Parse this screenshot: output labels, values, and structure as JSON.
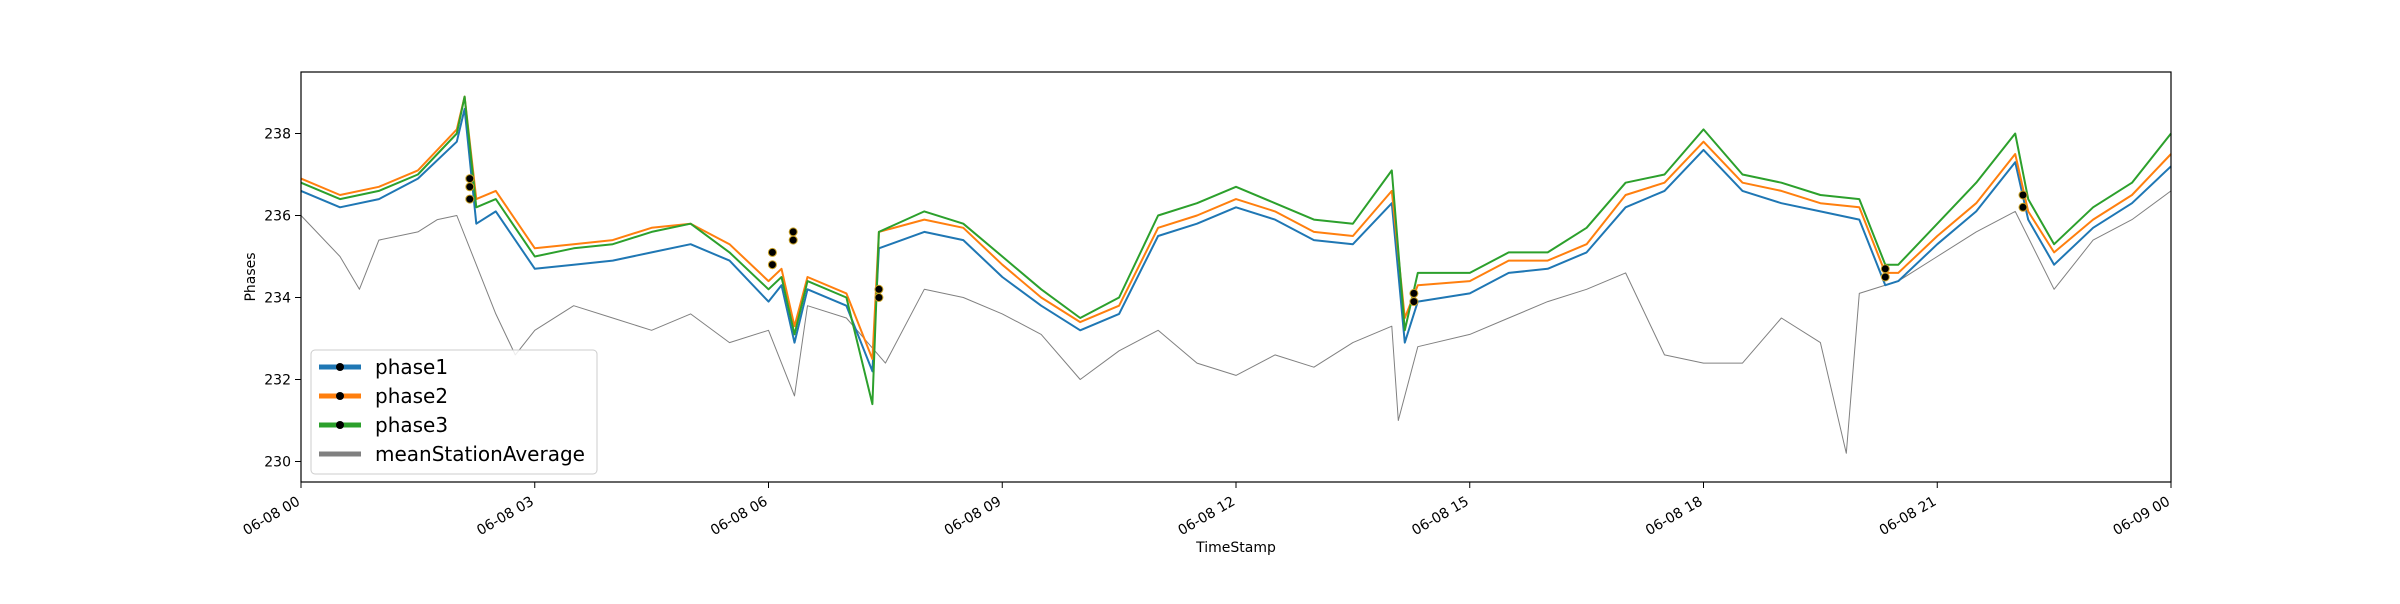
{
  "chart_data": {
    "type": "line",
    "title": "",
    "xlabel": "TimeStamp",
    "ylabel": "Phases",
    "x_range": [
      "06-08 00:00",
      "06-09 00:00"
    ],
    "ylim": [
      229.5,
      239.5
    ],
    "grid": false,
    "legend_position": "lower-left",
    "x_ticks": [
      "06-08 00",
      "06-08 03",
      "06-08 06",
      "06-08 09",
      "06-08 12",
      "06-08 15",
      "06-08 18",
      "06-08 21",
      "06-09 00"
    ],
    "y_ticks": [
      230,
      232,
      234,
      236,
      238
    ],
    "colors": {
      "phase1": "#1f77b4",
      "phase2": "#ff7f0e",
      "phase3": "#2ca02c",
      "meanStationAverage": "#808080",
      "marker": "#000000"
    },
    "series": [
      {
        "name": "phase1",
        "x": [
          "06-08 00:00",
          "06-08 00:30",
          "06-08 01:00",
          "06-08 01:30",
          "06-08 02:00",
          "06-08 02:06",
          "06-08 02:15",
          "06-08 02:30",
          "06-08 03:00",
          "06-08 03:30",
          "06-08 04:00",
          "06-08 04:30",
          "06-08 05:00",
          "06-08 05:30",
          "06-08 06:00",
          "06-08 06:10",
          "06-08 06:20",
          "06-08 06:30",
          "06-08 07:00",
          "06-08 07:20",
          "06-08 07:25",
          "06-08 08:00",
          "06-08 08:30",
          "06-08 09:00",
          "06-08 09:30",
          "06-08 10:00",
          "06-08 10:30",
          "06-08 11:00",
          "06-08 11:30",
          "06-08 12:00",
          "06-08 12:30",
          "06-08 13:00",
          "06-08 13:30",
          "06-08 14:00",
          "06-08 14:10",
          "06-08 14:20",
          "06-08 15:00",
          "06-08 15:30",
          "06-08 16:00",
          "06-08 16:30",
          "06-08 17:00",
          "06-08 17:30",
          "06-08 18:00",
          "06-08 18:30",
          "06-08 19:00",
          "06-08 19:30",
          "06-08 20:00",
          "06-08 20:20",
          "06-08 20:30",
          "06-08 21:00",
          "06-08 21:30",
          "06-08 22:00",
          "06-08 22:10",
          "06-08 22:30",
          "06-08 23:00",
          "06-08 23:30",
          "06-09 00:00"
        ],
        "y": [
          236.6,
          236.2,
          236.4,
          236.9,
          237.8,
          238.6,
          235.8,
          236.1,
          234.7,
          234.8,
          234.9,
          235.1,
          235.3,
          234.9,
          233.9,
          234.3,
          232.9,
          234.2,
          233.8,
          232.2,
          235.2,
          235.6,
          235.4,
          234.5,
          233.8,
          233.2,
          233.6,
          235.5,
          235.8,
          236.2,
          235.9,
          235.4,
          235.3,
          236.3,
          232.9,
          233.9,
          234.1,
          234.6,
          234.7,
          235.1,
          236.2,
          236.6,
          237.6,
          236.6,
          236.3,
          236.1,
          235.9,
          234.3,
          234.4,
          235.3,
          236.1,
          237.3,
          235.9,
          234.8,
          235.7,
          236.3,
          237.2
        ]
      },
      {
        "name": "phase2",
        "x": [
          "06-08 00:00",
          "06-08 00:30",
          "06-08 01:00",
          "06-08 01:30",
          "06-08 02:00",
          "06-08 02:06",
          "06-08 02:15",
          "06-08 02:30",
          "06-08 03:00",
          "06-08 03:30",
          "06-08 04:00",
          "06-08 04:30",
          "06-08 05:00",
          "06-08 05:30",
          "06-08 06:00",
          "06-08 06:10",
          "06-08 06:20",
          "06-08 06:30",
          "06-08 07:00",
          "06-08 07:20",
          "06-08 07:25",
          "06-08 08:00",
          "06-08 08:30",
          "06-08 09:00",
          "06-08 09:30",
          "06-08 10:00",
          "06-08 10:30",
          "06-08 11:00",
          "06-08 11:30",
          "06-08 12:00",
          "06-08 12:30",
          "06-08 13:00",
          "06-08 13:30",
          "06-08 14:00",
          "06-08 14:10",
          "06-08 14:20",
          "06-08 15:00",
          "06-08 15:30",
          "06-08 16:00",
          "06-08 16:30",
          "06-08 17:00",
          "06-08 17:30",
          "06-08 18:00",
          "06-08 18:30",
          "06-08 19:00",
          "06-08 19:30",
          "06-08 20:00",
          "06-08 20:20",
          "06-08 20:30",
          "06-08 21:00",
          "06-08 21:30",
          "06-08 22:00",
          "06-08 22:10",
          "06-08 22:30",
          "06-08 23:00",
          "06-08 23:30",
          "06-09 00:00"
        ],
        "y": [
          236.9,
          236.5,
          236.7,
          237.1,
          238.1,
          238.9,
          236.4,
          236.6,
          235.2,
          235.3,
          235.4,
          235.7,
          235.8,
          235.3,
          234.4,
          234.7,
          233.3,
          234.5,
          234.1,
          232.5,
          235.6,
          235.9,
          235.7,
          234.8,
          234.0,
          233.4,
          233.8,
          235.7,
          236.0,
          236.4,
          236.1,
          235.6,
          235.5,
          236.6,
          233.5,
          234.3,
          234.4,
          234.9,
          234.9,
          235.3,
          236.5,
          236.8,
          237.8,
          236.8,
          236.6,
          236.3,
          236.2,
          234.6,
          234.6,
          235.5,
          236.3,
          237.5,
          236.1,
          235.1,
          235.9,
          236.5,
          237.5
        ]
      },
      {
        "name": "phase3",
        "x": [
          "06-08 00:00",
          "06-08 00:30",
          "06-08 01:00",
          "06-08 01:30",
          "06-08 02:00",
          "06-08 02:06",
          "06-08 02:15",
          "06-08 02:30",
          "06-08 03:00",
          "06-08 03:30",
          "06-08 04:00",
          "06-08 04:30",
          "06-08 05:00",
          "06-08 05:30",
          "06-08 06:00",
          "06-08 06:10",
          "06-08 06:20",
          "06-08 06:30",
          "06-08 07:00",
          "06-08 07:20",
          "06-08 07:25",
          "06-08 08:00",
          "06-08 08:30",
          "06-08 09:00",
          "06-08 09:30",
          "06-08 10:00",
          "06-08 10:30",
          "06-08 11:00",
          "06-08 11:30",
          "06-08 12:00",
          "06-08 12:30",
          "06-08 13:00",
          "06-08 13:30",
          "06-08 14:00",
          "06-08 14:10",
          "06-08 14:20",
          "06-08 15:00",
          "06-08 15:30",
          "06-08 16:00",
          "06-08 16:30",
          "06-08 17:00",
          "06-08 17:30",
          "06-08 18:00",
          "06-08 18:30",
          "06-08 19:00",
          "06-08 19:30",
          "06-08 20:00",
          "06-08 20:20",
          "06-08 20:30",
          "06-08 21:00",
          "06-08 21:30",
          "06-08 22:00",
          "06-08 22:10",
          "06-08 22:30",
          "06-08 23:00",
          "06-08 23:30",
          "06-09 00:00"
        ],
        "y": [
          236.8,
          236.4,
          236.6,
          237.0,
          238.0,
          238.9,
          236.2,
          236.4,
          235.0,
          235.2,
          235.3,
          235.6,
          235.8,
          235.1,
          234.2,
          234.5,
          233.1,
          234.4,
          234.0,
          231.4,
          235.6,
          236.1,
          235.8,
          235.0,
          234.2,
          233.5,
          234.0,
          236.0,
          236.3,
          236.7,
          236.3,
          235.9,
          235.8,
          237.1,
          233.2,
          234.6,
          234.6,
          235.1,
          235.1,
          235.7,
          236.8,
          237.0,
          238.1,
          237.0,
          236.8,
          236.5,
          236.4,
          234.8,
          234.8,
          235.8,
          236.8,
          238.0,
          236.4,
          235.3,
          236.2,
          236.8,
          238.0
        ]
      },
      {
        "name": "meanStationAverage",
        "x": [
          "06-08 00:00",
          "06-08 00:30",
          "06-08 00:45",
          "06-08 01:00",
          "06-08 01:30",
          "06-08 01:45",
          "06-08 02:00",
          "06-08 02:30",
          "06-08 02:45",
          "06-08 03:00",
          "06-08 03:30",
          "06-08 04:00",
          "06-08 04:30",
          "06-08 05:00",
          "06-08 05:30",
          "06-08 06:00",
          "06-08 06:20",
          "06-08 06:30",
          "06-08 07:00",
          "06-08 07:30",
          "06-08 08:00",
          "06-08 08:30",
          "06-08 09:00",
          "06-08 09:30",
          "06-08 10:00",
          "06-08 10:30",
          "06-08 11:00",
          "06-08 11:30",
          "06-08 12:00",
          "06-08 12:30",
          "06-08 13:00",
          "06-08 13:30",
          "06-08 14:00",
          "06-08 14:05",
          "06-08 14:20",
          "06-08 15:00",
          "06-08 15:30",
          "06-08 16:00",
          "06-08 16:30",
          "06-08 17:00",
          "06-08 17:30",
          "06-08 18:00",
          "06-08 18:30",
          "06-08 19:00",
          "06-08 19:30",
          "06-08 19:50",
          "06-08 20:00",
          "06-08 20:30",
          "06-08 21:00",
          "06-08 21:30",
          "06-08 22:00",
          "06-08 22:30",
          "06-08 23:00",
          "06-08 23:30",
          "06-09 00:00"
        ],
        "y": [
          236.0,
          235.0,
          234.2,
          235.4,
          235.6,
          235.9,
          236.0,
          233.6,
          232.6,
          233.2,
          233.8,
          233.5,
          233.2,
          233.6,
          232.9,
          233.2,
          231.6,
          233.8,
          233.5,
          232.4,
          234.2,
          234.0,
          233.6,
          233.1,
          232.0,
          232.7,
          233.2,
          232.4,
          232.1,
          232.6,
          232.3,
          232.9,
          233.3,
          231.0,
          232.8,
          233.1,
          233.5,
          233.9,
          234.2,
          234.6,
          232.6,
          232.4,
          232.4,
          233.5,
          232.9,
          230.2,
          234.1,
          234.4,
          235.0,
          235.6,
          236.1,
          234.2,
          235.4,
          235.9,
          236.6
        ]
      }
    ],
    "markers": {
      "name": "marker",
      "points": [
        {
          "x": "06-08 02:10",
          "y": 236.9
        },
        {
          "x": "06-08 02:10",
          "y": 236.7
        },
        {
          "x": "06-08 02:10",
          "y": 236.4
        },
        {
          "x": "06-08 06:03",
          "y": 235.1
        },
        {
          "x": "06-08 06:03",
          "y": 234.8
        },
        {
          "x": "06-08 06:19",
          "y": 235.6
        },
        {
          "x": "06-08 06:19",
          "y": 235.4
        },
        {
          "x": "06-08 07:25",
          "y": 234.2
        },
        {
          "x": "06-08 07:25",
          "y": 234.0
        },
        {
          "x": "06-08 14:17",
          "y": 234.1
        },
        {
          "x": "06-08 14:17",
          "y": 233.9
        },
        {
          "x": "06-08 20:20",
          "y": 234.7
        },
        {
          "x": "06-08 20:20",
          "y": 234.5
        },
        {
          "x": "06-08 22:06",
          "y": 236.5
        },
        {
          "x": "06-08 22:06",
          "y": 236.2
        }
      ]
    }
  }
}
